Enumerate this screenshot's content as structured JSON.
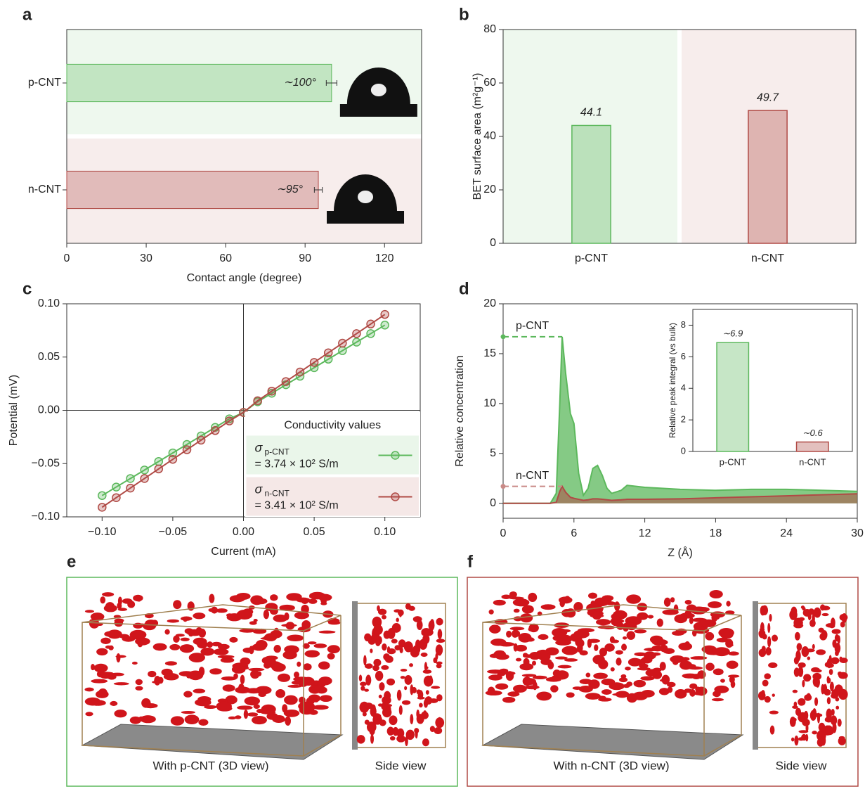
{
  "chart_data": [
    {
      "panel_label": "a",
      "type": "bar",
      "orientation": "horizontal",
      "categories": [
        "p-CNT",
        "n-CNT"
      ],
      "values": [
        100,
        95
      ],
      "errors": [
        2,
        1.5
      ],
      "value_labels": [
        "∼100°",
        "∼95°"
      ],
      "colors": [
        "#5cb85c",
        "#b04a45"
      ],
      "background_bands": true,
      "xlim": [
        0,
        134
      ],
      "xticks": [
        0,
        30,
        60,
        90,
        120
      ],
      "xlabel": "Contact angle (degree)"
    },
    {
      "panel_label": "b",
      "type": "bar",
      "categories": [
        "p-CNT",
        "n-CNT"
      ],
      "values": [
        44.1,
        49.7
      ],
      "colors": [
        "#5cb85c",
        "#b04a45"
      ],
      "background_bands": true,
      "ylim": [
        0,
        80
      ],
      "yticks": [
        0,
        20,
        40,
        60,
        80
      ],
      "ylabel": "BET surface area (m²g⁻¹)"
    },
    {
      "panel_label": "c",
      "type": "line",
      "x": [
        -0.1,
        -0.09,
        -0.08,
        -0.07,
        -0.06,
        -0.05,
        -0.04,
        -0.03,
        -0.02,
        -0.01,
        0,
        0.01,
        0.02,
        0.03,
        0.04,
        0.05,
        0.06,
        0.07,
        0.08,
        0.09,
        0.1
      ],
      "series": [
        {
          "name": "p-CNT",
          "color": "#5cb85c",
          "symbol": "σ",
          "conductivity": "= 3.74 × 10² S/m",
          "values": [
            -0.08,
            -0.072,
            -0.064,
            -0.056,
            -0.048,
            -0.04,
            -0.032,
            -0.024,
            -0.016,
            -0.008,
            -0.002,
            0.008,
            0.016,
            0.024,
            0.032,
            0.04,
            0.048,
            0.056,
            0.064,
            0.072,
            0.08
          ]
        },
        {
          "name": "n-CNT",
          "color": "#b04a45",
          "symbol": "σ",
          "conductivity": "= 3.41 × 10² S/m",
          "values": [
            -0.091,
            -0.082,
            -0.073,
            -0.064,
            -0.055,
            -0.046,
            -0.037,
            -0.028,
            -0.019,
            -0.01,
            -0.002,
            0.009,
            0.018,
            0.027,
            0.036,
            0.045,
            0.054,
            0.063,
            0.072,
            0.081,
            0.09
          ]
        }
      ],
      "xlim": [
        -0.125,
        0.125
      ],
      "ylim": [
        -0.1,
        0.1
      ],
      "xticks": [
        {
          "value": -0.1,
          "label": "−0.10"
        },
        {
          "value": -0.05,
          "label": "−0.05"
        },
        {
          "value": 0,
          "label": "0.00"
        },
        {
          "value": 0.05,
          "label": "0.05"
        },
        {
          "value": 0.1,
          "label": "0.10"
        }
      ],
      "yticks": [
        {
          "value": -0.1,
          "label": "−0.10"
        },
        {
          "value": -0.05,
          "label": "−0.05"
        },
        {
          "value": 0,
          "label": "0.00"
        },
        {
          "value": 0.05,
          "label": "0.05"
        },
        {
          "value": 0.1,
          "label": "0.10"
        }
      ],
      "zero_lines": true,
      "legend": "lower right",
      "legend_title": "Conductivity values",
      "xlabel": "Current (mA)",
      "ylabel": "Potential (mV)"
    },
    {
      "panel_label": "d",
      "type": "area",
      "x": [
        0,
        4,
        4.5,
        4.8,
        5.0,
        5.3,
        5.7,
        6.0,
        6.4,
        6.8,
        7.2,
        7.6,
        8.0,
        8.4,
        8.8,
        9.2,
        10,
        10.5,
        12,
        15,
        18,
        21,
        24,
        27,
        30
      ],
      "series": [
        {
          "name": "p-CNT",
          "color": "#5cb85c",
          "values": [
            0,
            0,
            1,
            10,
            16.7,
            13,
            9,
            8,
            3,
            0.8,
            1.5,
            3.5,
            3.8,
            2.8,
            1.5,
            1.0,
            1.3,
            1.8,
            1.6,
            1.4,
            1.3,
            1.4,
            1.4,
            1.3,
            1.2
          ]
        },
        {
          "name": "n-CNT",
          "color": "#b04a45",
          "values": [
            0,
            0,
            0.1,
            1.2,
            1.7,
            1.1,
            0.6,
            0.5,
            0.4,
            0.3,
            0.35,
            0.45,
            0.45,
            0.4,
            0.35,
            0.3,
            0.35,
            0.4,
            0.4,
            0.45,
            0.55,
            0.65,
            0.75,
            0.85,
            0.95
          ]
        }
      ],
      "xlim": [
        0,
        30
      ],
      "ylim": [
        -1.5,
        20
      ],
      "xticks": [
        0,
        6,
        12,
        18,
        24,
        30
      ],
      "yticks": [
        0,
        5,
        10,
        15,
        20
      ],
      "xlabel": "Z (Å)",
      "ylabel": "Relative concentration",
      "reference_lines": [
        {
          "label": "p-CNT",
          "value": 16.7,
          "color": "#5cb85c"
        },
        {
          "label": "n-CNT",
          "value": 1.7,
          "color": "#c98a87"
        }
      ]
    },
    {
      "type": "bar",
      "categories": [
        "p-CNT",
        "n-CNT"
      ],
      "values": [
        6.9,
        0.6
      ],
      "value_labels": [
        "∼6.9",
        "∼0.6"
      ],
      "colors": [
        "#5cb85c",
        "#b04a45"
      ],
      "ylim": [
        0,
        9
      ],
      "yticks": [
        0,
        2,
        4,
        6,
        8
      ],
      "ylabel": "Relative peak integral (vs bulk)"
    }
  ],
  "renders": [
    {
      "panel_label": "e",
      "caption": "With p-CNT (3D view)",
      "side_caption": "Side view",
      "color": "#5cb85c"
    },
    {
      "panel_label": "f",
      "caption": "With n-CNT (3D view)",
      "side_caption": "Side view",
      "color": "#b04a45"
    }
  ]
}
